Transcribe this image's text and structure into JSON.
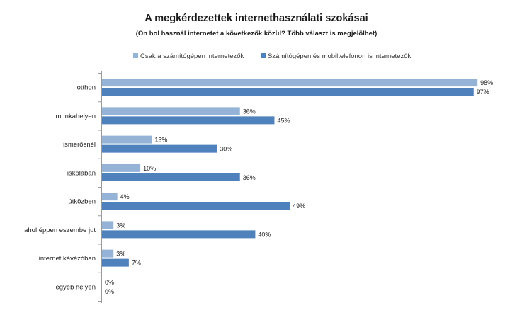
{
  "chart_data": {
    "type": "bar",
    "orientation": "horizontal",
    "title": "A megkérdezettek internethasználati szokásai",
    "subtitle": "(Ön hol használ internetet a következők közül? Több választ is megjelölhet)",
    "legend_position": "top",
    "value_suffix": "%",
    "xlim": [
      0,
      100
    ],
    "grid": false,
    "categories": [
      "otthon",
      "munkahelyen",
      "ismerősnél",
      "iskolában",
      "útközben",
      "ahol éppen eszembe jut",
      "internet kávézóban",
      "egyéb helyen"
    ],
    "series": [
      {
        "name": "Csak a számítógépen internetezők",
        "color": "#95b3d7",
        "values": [
          98,
          36,
          13,
          10,
          4,
          3,
          3,
          0
        ]
      },
      {
        "name": "Számítógépen és mobiltelefonon is internetezők",
        "color": "#4f81bd",
        "values": [
          97,
          45,
          30,
          36,
          49,
          40,
          7,
          0
        ]
      }
    ]
  }
}
